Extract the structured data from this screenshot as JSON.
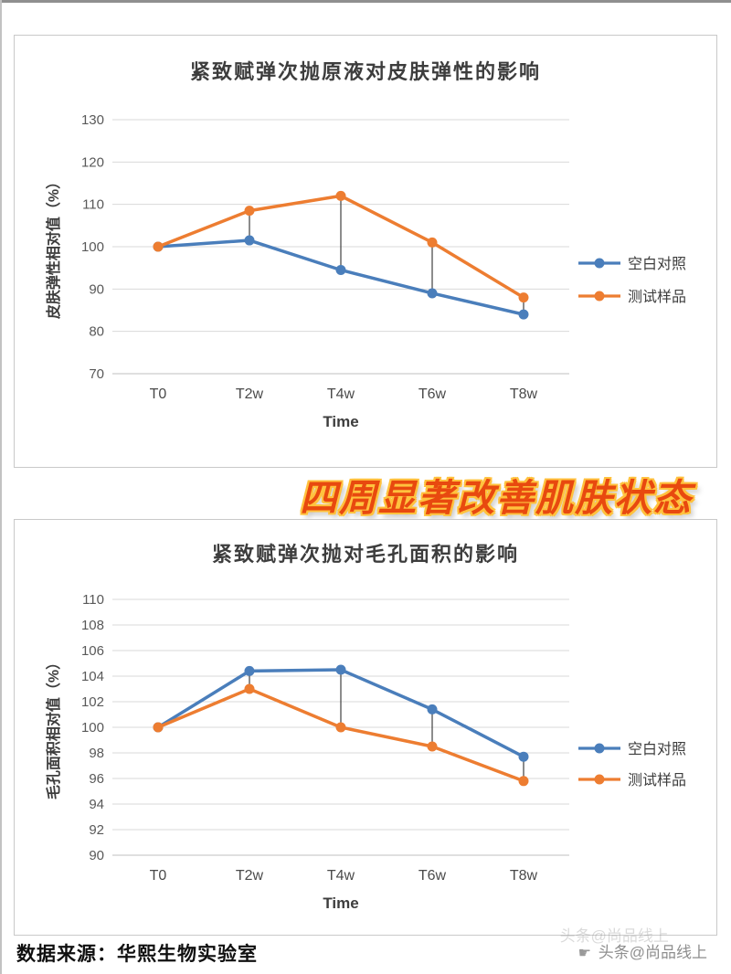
{
  "banner": "四周显著改善肌肤状态",
  "footer": {
    "source": "数据来源：华熙生物实验室",
    "watermark": "头条@尚品线上",
    "watermark_echo": "头条@尚品线上"
  },
  "colors": {
    "control_blue": "#4A7EBB",
    "test_orange": "#ED7D31",
    "grid": "#D9D9D9",
    "axis_line": "#BFBFBF",
    "axis_text": "#595959",
    "label_text": "#3d3d3d",
    "connector": "#404040",
    "banner_red": "#e8490f",
    "banner_outline": "#ffc23e"
  },
  "chart_data": [
    {
      "type": "line",
      "title": "紧致赋弹次抛原液对皮肤弹性的影响",
      "xlabel": "Time",
      "ylabel": "皮肤弹性相对值（%）",
      "categories": [
        "T0",
        "T2w",
        "T4w",
        "T6w",
        "T8w"
      ],
      "series": [
        {
          "name": "空白对照",
          "color": "#4A7EBB",
          "values": [
            100,
            101.5,
            94.5,
            89,
            84
          ]
        },
        {
          "name": "测试样品",
          "color": "#ED7D31",
          "values": [
            100,
            108.5,
            112,
            101,
            88
          ]
        }
      ],
      "ylim": [
        70,
        130
      ],
      "ytick_step": 10,
      "grid": true,
      "legend_position": "right",
      "connectors": [
        1,
        2,
        3,
        4
      ]
    },
    {
      "type": "line",
      "title": "紧致赋弹次抛对毛孔面积的影响",
      "xlabel": "Time",
      "ylabel": "毛孔面积相对值（%）",
      "categories": [
        "T0",
        "T2w",
        "T4w",
        "T6w",
        "T8w"
      ],
      "series": [
        {
          "name": "空白对照",
          "color": "#4A7EBB",
          "values": [
            100,
            104.4,
            104.5,
            101.4,
            97.7
          ]
        },
        {
          "name": "测试样品",
          "color": "#ED7D31",
          "values": [
            100,
            103,
            100,
            98.5,
            95.8
          ]
        }
      ],
      "ylim": [
        90,
        110
      ],
      "ytick_step": 2,
      "grid": true,
      "legend_position": "right",
      "connectors": [
        1,
        2,
        3,
        4
      ]
    }
  ]
}
